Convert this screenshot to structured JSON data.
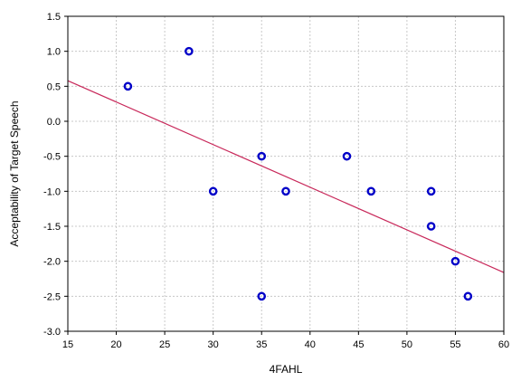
{
  "chart_data": {
    "type": "scatter",
    "xlabel": "4FAHL",
    "ylabel": "Acceptability of Target Speech",
    "xlim": [
      15,
      60
    ],
    "ylim": [
      -3.0,
      1.5
    ],
    "x_ticks": [
      15,
      20,
      25,
      30,
      35,
      40,
      45,
      50,
      55,
      60
    ],
    "x_tick_labels": [
      "15",
      "20",
      "25",
      "30",
      "35",
      "40",
      "45",
      "50",
      "55",
      "60"
    ],
    "y_ticks": [
      1.5,
      1.0,
      0.5,
      0.0,
      -0.5,
      -1.0,
      -1.5,
      -2.0,
      -2.5,
      -3.0
    ],
    "y_tick_labels": [
      "1.5",
      "1.0",
      "0.5",
      "0.0",
      "-0.5",
      "-1.0",
      "-1.5",
      "-2.0",
      "-2.5",
      "-3.0"
    ],
    "grid": true,
    "series": [
      {
        "points": [
          {
            "x": 21.2,
            "y": 0.5
          },
          {
            "x": 27.5,
            "y": 1.0
          },
          {
            "x": 30.0,
            "y": -1.0
          },
          {
            "x": 35.0,
            "y": -0.5
          },
          {
            "x": 35.0,
            "y": -2.5
          },
          {
            "x": 37.5,
            "y": -1.0
          },
          {
            "x": 43.8,
            "y": -0.5
          },
          {
            "x": 46.3,
            "y": -1.0
          },
          {
            "x": 52.5,
            "y": -1.0
          },
          {
            "x": 52.5,
            "y": -1.5
          },
          {
            "x": 55.0,
            "y": -2.0
          },
          {
            "x": 56.3,
            "y": -2.5
          }
        ],
        "color": "#0000c8"
      }
    ],
    "trend_line": {
      "points": [
        {
          "x": 15,
          "y": 0.58
        },
        {
          "x": 60,
          "y": -2.16
        }
      ],
      "color": "#c8285a"
    }
  }
}
